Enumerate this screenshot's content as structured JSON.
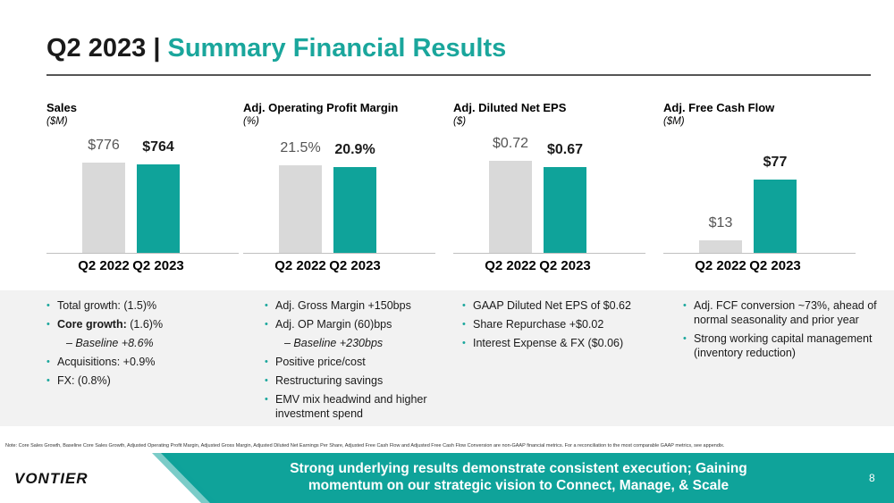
{
  "title": {
    "prefix": "Q2 2023 |",
    "main": "Summary Financial Results"
  },
  "colors": {
    "accent": "#0fa39a",
    "prior_bar": "#d9d9d9",
    "band": "#f2f2f2"
  },
  "chart_data": [
    {
      "type": "bar",
      "title": "Sales",
      "unit": "($M)",
      "categories": [
        "Q2 2022",
        "Q2 2023"
      ],
      "values": [
        776,
        764
      ],
      "labels": [
        "$776",
        "$764"
      ],
      "ylim": [
        0,
        860
      ]
    },
    {
      "type": "bar",
      "title": "Adj. Operating Profit Margin",
      "unit": "(%)",
      "categories": [
        "Q2 2022",
        "Q2 2023"
      ],
      "values": [
        21.5,
        20.9
      ],
      "labels": [
        "21.5%",
        "20.9%"
      ],
      "ylim": [
        0,
        24.5
      ]
    },
    {
      "type": "bar",
      "title": "Adj. Diluted Net EPS",
      "unit": "($)",
      "categories": [
        "Q2 2022",
        "Q2 2023"
      ],
      "values": [
        0.72,
        0.67
      ],
      "labels": [
        "$0.72",
        "$0.67"
      ],
      "ylim": [
        0,
        0.78
      ]
    },
    {
      "type": "bar",
      "title": "Adj. Free Cash Flow",
      "unit": "($M)",
      "categories": [
        "Q2 2022",
        "Q2 2023"
      ],
      "values": [
        13,
        77
      ],
      "labels": [
        "$13",
        "$77"
      ],
      "ylim": [
        0,
        105
      ]
    }
  ],
  "bullets": [
    [
      {
        "text": "Total growth: (1.5)%"
      },
      {
        "bold": "Core growth:",
        "rest": " (1.6)%"
      },
      {
        "sub": "– Baseline +8.6%"
      },
      {
        "text": "Acquisitions: +0.9%"
      },
      {
        "text": "FX: (0.8%)"
      }
    ],
    [
      {
        "text": "Adj. Gross Margin +150bps"
      },
      {
        "text": "Adj. OP Margin (60)bps"
      },
      {
        "sub": "– Baseline +230bps"
      },
      {
        "text": "Positive price/cost"
      },
      {
        "text": "Restructuring savings"
      },
      {
        "text": "EMV mix headwind and higher investment spend"
      }
    ],
    [
      {
        "text": "GAAP Diluted Net EPS of $0.62"
      },
      {
        "text": "Share Repurchase +$0.02"
      },
      {
        "text": "Interest Expense & FX ($0.06)"
      }
    ],
    [
      {
        "text": "Adj. FCF conversion ~73%, ahead of normal seasonality and prior year"
      },
      {
        "text": "Strong working capital management (inventory reduction)"
      }
    ]
  ],
  "note": "Note: Core Sales Growth, Baseline Core Sales Growth, Adjusted Operating Profit Margin, Adjusted Gross Margin, Adjusted Diluted Net Earnings Per Share, Adjusted Free Cash Flow and Adjusted Free Cash Flow Conversion are non-GAAP financial metrics. For a reconciliation to the most comparable GAAP metrics, see appendix.",
  "footer": {
    "logo": "VONTIER",
    "banner": "Strong underlying results demonstrate consistent execution; Gaining momentum on our strategic vision to Connect, Manage, & Scale",
    "page": "8"
  }
}
